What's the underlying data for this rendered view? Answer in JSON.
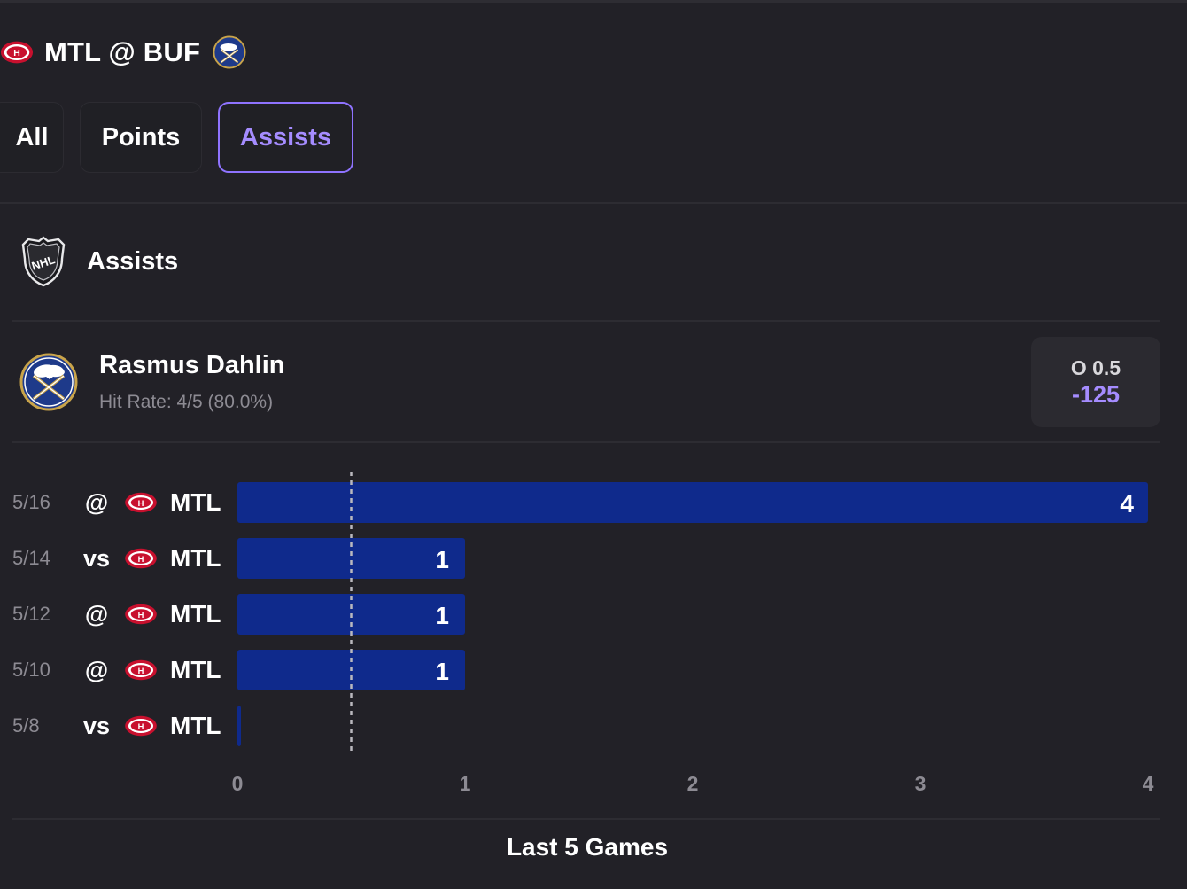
{
  "header": {
    "title": "MTL @ BUF"
  },
  "tabs": [
    {
      "label": "All",
      "active": false
    },
    {
      "label": "Points",
      "active": false
    },
    {
      "label": "Assists",
      "active": true
    }
  ],
  "section": {
    "title": "Assists"
  },
  "player": {
    "name": "Rasmus Dahlin",
    "hit_rate": "Hit Rate: 4/5 (80.0%)",
    "odds_line": "O 0.5",
    "odds_price": "-125"
  },
  "colors": {
    "background": "#222127",
    "accent": "#a58cff",
    "bar": "#0f2a8c",
    "muted_text": "#8d8b93"
  },
  "icons": {
    "home_team": "sabres-logo-icon",
    "away_team": "canadiens-logo-icon",
    "league": "nhl-logo-icon"
  },
  "chart_data": {
    "type": "bar",
    "orientation": "horizontal",
    "categories": [
      {
        "date": "5/16",
        "location": "@",
        "opponent": "MTL"
      },
      {
        "date": "5/14",
        "location": "vs",
        "opponent": "MTL"
      },
      {
        "date": "5/12",
        "location": "@",
        "opponent": "MTL"
      },
      {
        "date": "5/10",
        "location": "@",
        "opponent": "MTL"
      },
      {
        "date": "5/8",
        "location": "vs",
        "opponent": "MTL"
      }
    ],
    "values": [
      4,
      1,
      1,
      1,
      0
    ],
    "threshold": 0.5,
    "xlim": [
      0,
      4
    ],
    "xticks": [
      "0",
      "1",
      "2",
      "3",
      "4"
    ],
    "xlabel": "Last 5 Games",
    "grid": false
  }
}
